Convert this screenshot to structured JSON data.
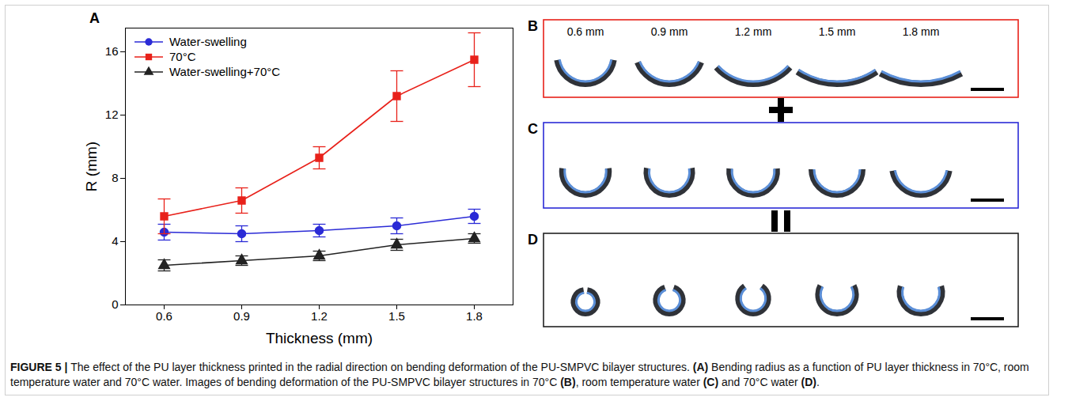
{
  "chart_data": {
    "type": "line",
    "panel_label": "A",
    "x_label": "Thickness (mm)",
    "y_label": "R (mm)",
    "x": [
      0.6,
      0.9,
      1.2,
      1.5,
      1.8
    ],
    "xlim": [
      0.45,
      1.95
    ],
    "xticks": [
      0.6,
      0.9,
      1.2,
      1.5,
      1.8
    ],
    "ylim": [
      0,
      17.5
    ],
    "yticks": [
      0,
      4,
      8,
      12,
      16
    ],
    "grid": false,
    "legend": "top-left",
    "series": [
      {
        "name": "Water-swelling",
        "color": "#2b2bd6",
        "marker": "circle",
        "values": [
          4.6,
          4.5,
          4.7,
          5.0,
          5.6
        ],
        "errors": [
          0.5,
          0.5,
          0.4,
          0.5,
          0.45
        ]
      },
      {
        "name": "70°C",
        "color": "#e8211a",
        "marker": "square",
        "values": [
          5.6,
          6.6,
          9.3,
          13.2,
          15.5
        ],
        "errors": [
          1.1,
          0.8,
          0.7,
          1.6,
          1.7
        ]
      },
      {
        "name": "Water-swelling+70°C",
        "color": "#222222",
        "marker": "triangle",
        "values": [
          2.5,
          2.8,
          3.1,
          3.8,
          4.2
        ],
        "errors": [
          0.35,
          0.3,
          0.3,
          0.35,
          0.3
        ]
      }
    ]
  },
  "photo_panels": [
    {
      "label": "B",
      "border_color": "#e8211a",
      "series": "70°C",
      "sample_labels": [
        "0.6 mm",
        "0.9 mm",
        "1.2 mm",
        "1.5 mm",
        "1.8 mm"
      ]
    },
    {
      "label": "C",
      "border_color": "#2b2bd6",
      "series": "Water-swelling"
    },
    {
      "label": "D",
      "border_color": "#222222",
      "series": "Water-swelling+70°C"
    }
  ],
  "caption": {
    "label": "FIGURE 5 |",
    "text": "The effect of the PU layer thickness printed in the radial direction on bending deformation of the PU-SMPVC bilayer structures. (A) Bending radius as a function of PU layer thickness in 70°C, room temperature water and 70°C water. Images of bending deformation of the PU-SMPVC bilayer structures in 70°C (B), room temperature water (C) and 70°C water (D)."
  }
}
